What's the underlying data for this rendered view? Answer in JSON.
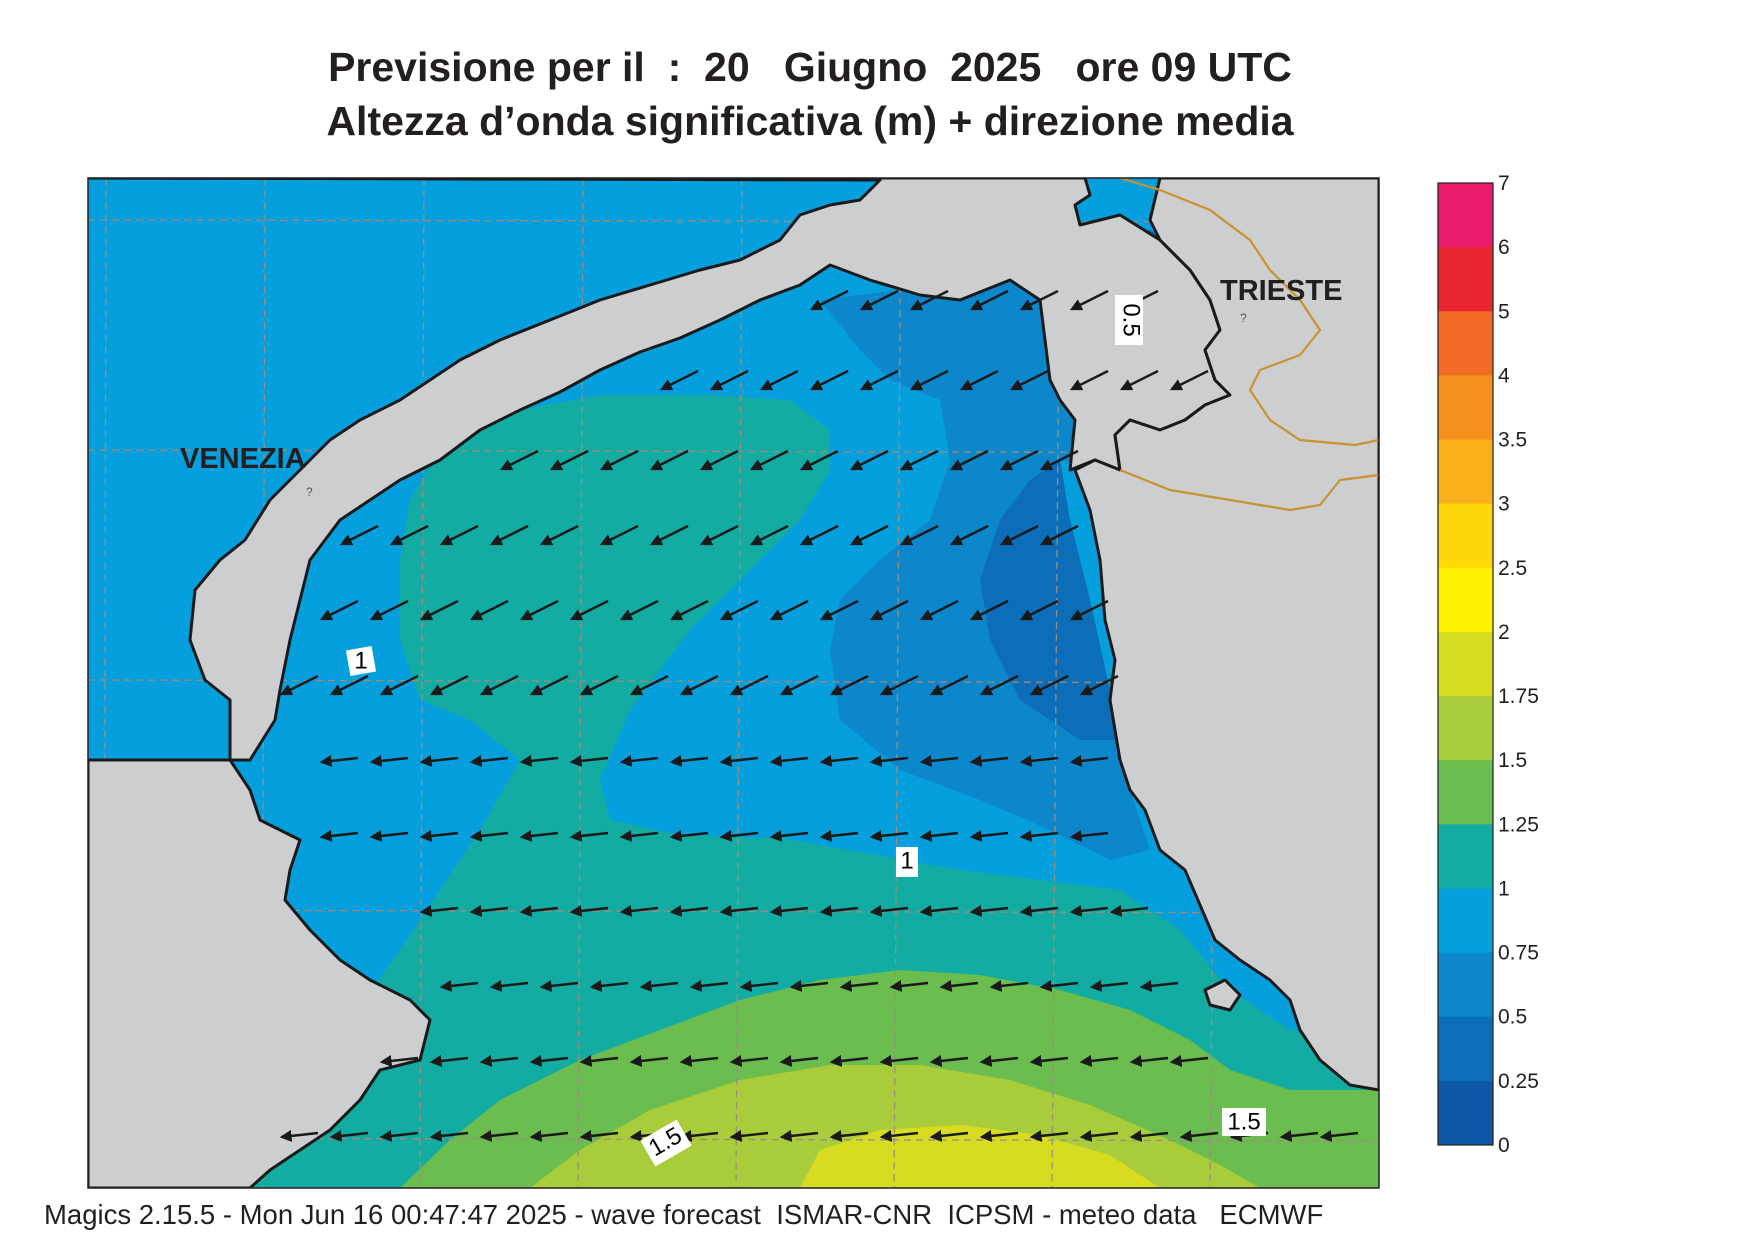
{
  "title": {
    "line1": "Previsione per il  :  20   Giugno  2025   ore 09 UTC",
    "line2": "Altezza d’onda significativa (m) + direzione media"
  },
  "map": {
    "cities": [
      "VENEZIA",
      "TRIESTE"
    ],
    "contour_labels": [
      "0.5",
      "1",
      "1",
      "1.5",
      "1.5"
    ],
    "colors": {
      "land": "#cdcecf",
      "coast": "#1a1a1a",
      "border": "#c8922e",
      "grid": "#9a8f7c",
      "arrow": "#1a1a1a"
    },
    "mean_direction": "from east-northeast"
  },
  "legend": {
    "labels": [
      "7",
      "6",
      "5",
      "4",
      "3.5",
      "3",
      "2.5",
      "2",
      "1.75",
      "1.5",
      "1.25",
      "1",
      "0.75",
      "0.5",
      "0.25",
      "0"
    ],
    "colors": [
      "#ec1a6b",
      "#e8262e",
      "#f26b24",
      "#f5901e",
      "#f9b01a",
      "#fcd808",
      "#fff201",
      "#d8dc21",
      "#a9cd3a",
      "#6abd4e",
      "#13aca3",
      "#069fdd",
      "#0c87cc",
      "#0c6eb8",
      "#0d57a6"
    ]
  },
  "footer": "Magics 2.15.5 - Mon Jun 16 00:47:47 2025 - wave forecast  ISMAR-CNR  ICPSM - meteo data   ECMWF"
}
